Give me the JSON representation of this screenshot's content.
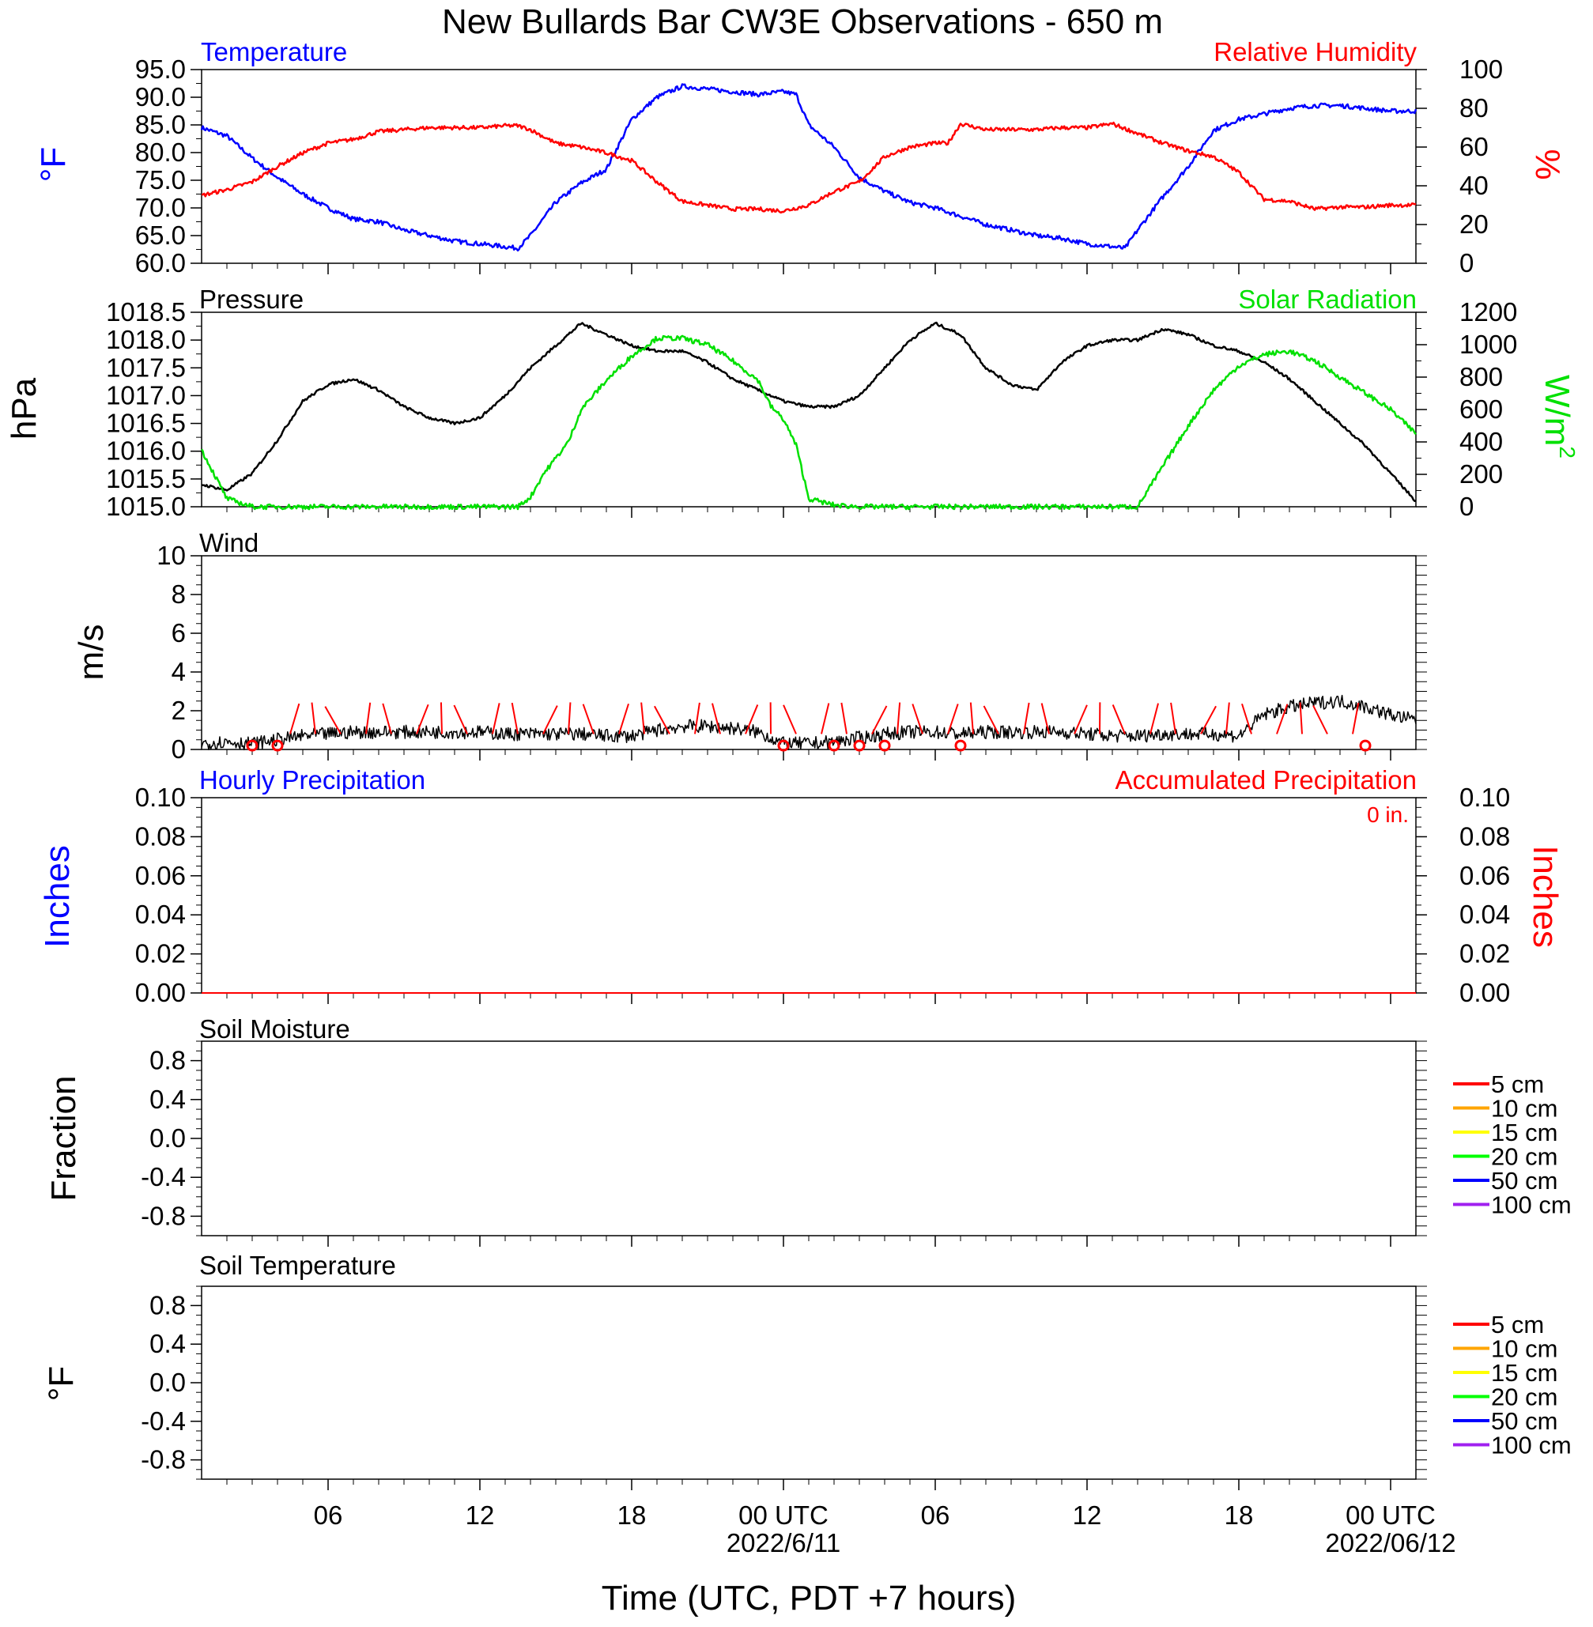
{
  "title": "New Bullards Bar CW3E Observations - 650 m",
  "xlabel": "Time (UTC, PDT +7 hours)",
  "x_ticks": [
    {
      "hour": 6,
      "label": "06",
      "sub": ""
    },
    {
      "hour": 12,
      "label": "12",
      "sub": ""
    },
    {
      "hour": 18,
      "label": "18",
      "sub": ""
    },
    {
      "hour": 24,
      "label": "00 UTC",
      "sub": "2022/6/11"
    },
    {
      "hour": 30,
      "label": "06",
      "sub": ""
    },
    {
      "hour": 36,
      "label": "12",
      "sub": ""
    },
    {
      "hour": 42,
      "label": "18",
      "sub": ""
    },
    {
      "hour": 48,
      "label": "00 UTC",
      "sub": "2022/06/12"
    }
  ],
  "x_range_hours": [
    1,
    49.0
  ],
  "colors": {
    "blue": "#0000ff",
    "red": "#ff0000",
    "green": "#00e000",
    "black": "#000000"
  },
  "panels": {
    "temp_rh": {
      "left_title": "Temperature",
      "right_title": "Relative Humidity",
      "left_unit": "°F",
      "right_unit": "%",
      "left_ticks": [
        "60.0",
        "65.0",
        "70.0",
        "75.0",
        "80.0",
        "85.0",
        "90.0",
        "95.0"
      ],
      "right_ticks": [
        "0",
        "20",
        "40",
        "60",
        "80",
        "100"
      ]
    },
    "pressure_solar": {
      "left_title": "Pressure",
      "right_title": "Solar Radiation",
      "left_unit": "hPa",
      "right_unit": "W/m",
      "right_unit_sup": "2",
      "left_ticks": [
        "1015.0",
        "1015.5",
        "1016.0",
        "1016.5",
        "1017.0",
        "1017.5",
        "1018.0",
        "1018.5"
      ],
      "right_ticks": [
        "0",
        "200",
        "400",
        "600",
        "800",
        "1000",
        "1200"
      ]
    },
    "wind": {
      "left_title": "Wind",
      "left_unit": "m/s",
      "left_ticks": [
        "0",
        "2",
        "4",
        "6",
        "8",
        "10"
      ]
    },
    "precip": {
      "left_title": "Hourly Precipitation",
      "right_title": "Accumulated Precipitation",
      "left_unit": "Inches",
      "right_unit": "Inches",
      "accum_label": "0 in.",
      "left_ticks": [
        "0.00",
        "0.02",
        "0.04",
        "0.06",
        "0.08",
        "0.10"
      ],
      "right_ticks": [
        "0.00",
        "0.02",
        "0.04",
        "0.06",
        "0.08",
        "0.10"
      ]
    },
    "soil_moisture": {
      "left_title": "Soil Moisture",
      "left_unit": "Fraction",
      "left_ticks": [
        "-0.8",
        "-0.4",
        "0.0",
        "0.4",
        "0.8"
      ]
    },
    "soil_temp": {
      "left_title": "Soil Temperature",
      "left_unit": "°F",
      "left_ticks": [
        "-0.8",
        "-0.4",
        "0.0",
        "0.4",
        "0.8"
      ]
    }
  },
  "soil_legend": [
    {
      "label": "5 cm",
      "color": "#ff0000"
    },
    {
      "label": "10 cm",
      "color": "#ffa500"
    },
    {
      "label": "15 cm",
      "color": "#ffff00"
    },
    {
      "label": "20 cm",
      "color": "#00ff00"
    },
    {
      "label": "50 cm",
      "color": "#0000ff"
    },
    {
      "label": "100 cm",
      "color": "#a020f0"
    }
  ],
  "chart_data": [
    {
      "type": "line",
      "title": "Temperature",
      "ylabel": "°F",
      "ylim": [
        60,
        95
      ],
      "series": [
        {
          "name": "Temperature",
          "color": "#0000ff",
          "x": [
            1,
            2,
            3,
            4,
            5,
            6,
            7,
            8,
            9,
            10,
            11,
            12,
            13,
            13.5,
            14,
            15,
            16,
            17,
            18,
            19,
            20,
            21,
            22,
            23,
            24,
            24.5,
            25,
            26,
            27,
            28,
            29,
            30,
            31,
            32,
            33,
            34,
            35,
            36,
            37,
            37.5,
            38,
            39,
            40,
            41,
            42,
            43,
            44,
            45,
            46,
            47,
            48,
            49
          ],
          "y": [
            84.5,
            83,
            79,
            75.5,
            72.5,
            70,
            68,
            67.5,
            66,
            65,
            64,
            63.5,
            63,
            62.7,
            65,
            71,
            74.5,
            77,
            86,
            90,
            92,
            91.5,
            91,
            90.5,
            91,
            90.5,
            85,
            81,
            75.5,
            73,
            71,
            70,
            68.5,
            67,
            66,
            65,
            64.5,
            63.5,
            63,
            62.7,
            66,
            72,
            77.5,
            84,
            86,
            87,
            88,
            88.5,
            88.5,
            88,
            87.5,
            87.5
          ]
        }
      ]
    },
    {
      "type": "line",
      "title": "Relative Humidity",
      "ylabel": "%",
      "ylim": [
        0,
        100
      ],
      "series": [
        {
          "name": "Relative Humidity",
          "color": "#ff0000",
          "x": [
            1,
            2,
            3,
            4,
            5,
            6,
            7,
            8,
            9,
            10,
            11,
            12,
            13,
            13.5,
            14,
            15,
            16,
            17,
            18,
            19,
            20,
            21,
            22,
            23,
            24,
            25,
            26,
            27,
            28,
            29,
            30,
            30.5,
            31,
            32,
            33,
            34,
            35,
            36,
            37,
            38,
            39,
            40,
            41,
            42,
            43,
            44,
            45,
            46,
            47,
            48,
            49
          ],
          "y": [
            35,
            38,
            42,
            50,
            57,
            62,
            64,
            68,
            69,
            70,
            70,
            70,
            71,
            71,
            69,
            62,
            60,
            57,
            53,
            42,
            32,
            30,
            28,
            28,
            27,
            30,
            37,
            42,
            55,
            60,
            62,
            62,
            72,
            69,
            69,
            69,
            70,
            70,
            72,
            67,
            62,
            58,
            55,
            47,
            33,
            32,
            28,
            29,
            29,
            30,
            30
          ]
        }
      ]
    },
    {
      "type": "line",
      "title": "Pressure",
      "ylabel": "hPa",
      "ylim": [
        1015.0,
        1018.5
      ],
      "series": [
        {
          "name": "Pressure",
          "color": "#000000",
          "x": [
            1,
            2,
            3,
            4,
            5,
            6,
            7,
            8,
            9,
            10,
            11,
            12,
            13,
            14,
            15,
            16,
            17,
            18,
            19,
            20,
            21,
            22,
            23,
            24,
            25,
            26,
            27,
            28,
            29,
            30,
            31,
            32,
            33,
            34,
            35,
            36,
            37,
            38,
            39,
            40,
            41,
            42,
            43,
            44,
            45,
            46,
            47,
            48,
            49
          ],
          "y": [
            1015.4,
            1015.3,
            1015.6,
            1016.2,
            1016.9,
            1017.2,
            1017.3,
            1017.1,
            1016.8,
            1016.6,
            1016.5,
            1016.6,
            1017.0,
            1017.5,
            1017.9,
            1018.3,
            1018.1,
            1017.9,
            1017.8,
            1017.8,
            1017.6,
            1017.3,
            1017.1,
            1016.9,
            1016.8,
            1016.8,
            1017.0,
            1017.5,
            1018.0,
            1018.3,
            1018.1,
            1017.5,
            1017.2,
            1017.1,
            1017.6,
            1017.9,
            1018.0,
            1018.0,
            1018.2,
            1018.1,
            1017.9,
            1017.8,
            1017.6,
            1017.3,
            1016.9,
            1016.5,
            1016.1,
            1015.6,
            1015.1
          ]
        }
      ]
    },
    {
      "type": "line",
      "title": "Solar Radiation",
      "ylabel": "W/m2",
      "ylim": [
        0,
        1200
      ],
      "series": [
        {
          "name": "Solar Radiation",
          "color": "#00e000",
          "x": [
            1,
            1.5,
            2,
            3,
            4,
            5,
            6,
            7,
            8,
            9,
            10,
            11,
            12,
            13,
            13.5,
            14,
            14.5,
            15,
            15.5,
            16,
            17,
            18,
            19,
            20,
            21,
            22,
            23,
            23.5,
            24,
            24.5,
            25,
            26,
            27,
            28,
            29,
            30,
            31,
            32,
            33,
            34,
            35,
            36,
            37,
            37.5,
            38,
            39,
            40,
            41,
            42,
            43,
            44,
            45,
            46,
            47,
            48,
            49
          ],
          "y": [
            350,
            200,
            50,
            0,
            0,
            0,
            0,
            0,
            0,
            0,
            0,
            0,
            0,
            0,
            0,
            60,
            200,
            300,
            400,
            600,
            780,
            930,
            1040,
            1040,
            1000,
            900,
            780,
            620,
            540,
            380,
            50,
            10,
            0,
            0,
            0,
            0,
            0,
            0,
            0,
            0,
            0,
            0,
            0,
            0,
            0,
            250,
            500,
            720,
            870,
            940,
            960,
            900,
            800,
            700,
            600,
            450
          ]
        }
      ]
    },
    {
      "type": "line",
      "title": "Wind",
      "ylabel": "m/s",
      "ylim": [
        0,
        10
      ],
      "series": [
        {
          "name": "Wind speed",
          "color": "#000000",
          "x": [
            1,
            2,
            3,
            4,
            5,
            6,
            7,
            8,
            9,
            10,
            11,
            12,
            13,
            14,
            15,
            16,
            17,
            18,
            19,
            20,
            21,
            22,
            23,
            24,
            25,
            26,
            27,
            28,
            29,
            30,
            31,
            32,
            33,
            34,
            35,
            36,
            37,
            38,
            39,
            40,
            41,
            42,
            43,
            44,
            45,
            46,
            47,
            48,
            49
          ],
          "y": [
            0.3,
            0.4,
            0.3,
            0.5,
            0.7,
            0.8,
            0.9,
            0.9,
            0.9,
            0.9,
            0.9,
            0.9,
            0.8,
            0.8,
            0.8,
            0.8,
            0.7,
            0.7,
            1.0,
            1.2,
            1.2,
            1.1,
            0.9,
            0.3,
            0.3,
            0.4,
            0.6,
            0.8,
            0.9,
            0.9,
            0.8,
            0.9,
            0.9,
            0.9,
            0.9,
            0.8,
            0.7,
            0.7,
            0.8,
            0.8,
            0.8,
            0.7,
            1.8,
            2.2,
            2.4,
            2.5,
            2.2,
            1.8,
            1.5
          ]
        }
      ]
    },
    {
      "type": "line",
      "title": "Hourly Precipitation",
      "ylabel": "Inches",
      "ylim": [
        0,
        0.1
      ],
      "series": [
        {
          "name": "Hourly Precipitation",
          "color": "#0000ff",
          "x": [
            1,
            49
          ],
          "y": [
            0,
            0
          ]
        }
      ]
    },
    {
      "type": "line",
      "title": "Accumulated Precipitation",
      "ylabel": "Inches",
      "ylim": [
        0,
        0.1
      ],
      "series": [
        {
          "name": "Accumulated Precipitation",
          "color": "#ff0000",
          "x": [
            1,
            49
          ],
          "y": [
            0,
            0
          ]
        }
      ]
    },
    {
      "type": "line",
      "title": "Soil Moisture",
      "ylabel": "Fraction",
      "ylim": [
        -1.0,
        1.0
      ],
      "series": [
        {
          "name": "5 cm",
          "values": []
        },
        {
          "name": "10 cm",
          "values": []
        },
        {
          "name": "15 cm",
          "values": []
        },
        {
          "name": "20 cm",
          "values": []
        },
        {
          "name": "50 cm",
          "values": []
        },
        {
          "name": "100 cm",
          "values": []
        }
      ]
    },
    {
      "type": "line",
      "title": "Soil Temperature",
      "ylabel": "°F",
      "ylim": [
        -1.0,
        1.0
      ],
      "series": [
        {
          "name": "5 cm",
          "values": []
        },
        {
          "name": "10 cm",
          "values": []
        },
        {
          "name": "15 cm",
          "values": []
        },
        {
          "name": "20 cm",
          "values": []
        },
        {
          "name": "50 cm",
          "values": []
        },
        {
          "name": "100 cm",
          "values": []
        }
      ]
    }
  ]
}
